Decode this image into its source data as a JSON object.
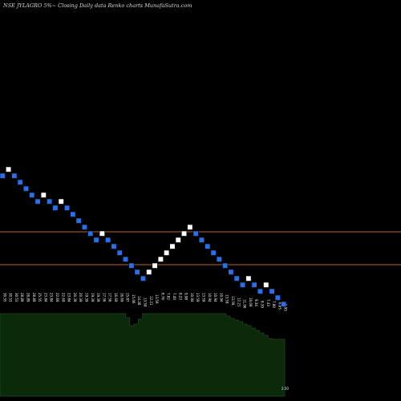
{
  "header": {
    "title": "NSE JYLAGRO 5%~  Closing Daily data  Renko  charts MunafaSutra.com"
  },
  "colors": {
    "background": "#000000",
    "up_brick": "#ffffff",
    "down_brick": "#2a6ee8",
    "brick_border": "#000000",
    "hline": "#b8632a",
    "volume_fill": "#0a2a0a",
    "volume_edge": "#2e5c2e"
  },
  "chart_data": {
    "type": "renko",
    "brick_direction": [
      "D",
      "U",
      "D",
      "D",
      "D",
      "D",
      "D",
      "U",
      "D",
      "D",
      "U",
      "D",
      "D",
      "D",
      "D",
      "D",
      "D",
      "U",
      "D",
      "D",
      "D",
      "D",
      "D",
      "D",
      "D",
      "U",
      "U",
      "U",
      "U",
      "U",
      "U",
      "U",
      "U",
      "D",
      "D",
      "D",
      "D",
      "D",
      "D",
      "D",
      "D",
      "D",
      "U",
      "D",
      "D",
      "U",
      "D",
      "D",
      "D"
    ],
    "horizontal_lines": [
      1,
      2
    ],
    "brick_labels": [
      "30.55",
      "30.53",
      "30.53",
      "28.89",
      "28.89",
      "28.89",
      "25.55",
      "23.84",
      "23.84",
      "22.69",
      "22.69",
      "23.84",
      "20.39",
      "20.39",
      "19.39",
      "19.39",
      "19.39",
      "17.56",
      "17.56",
      "16.69",
      "16.69",
      "15.87",
      "15.06",
      "14.28",
      "13.59",
      "12.21",
      "13.59",
      "8.76",
      "7.82",
      "7.40",
      "8.23",
      "9.98",
      "10.94",
      "13.59",
      "13.59",
      "10.94",
      "10.94",
      "10.94",
      "13.59",
      "13.59",
      "12.21",
      "11.06",
      "10.09",
      "9.34",
      "8.39",
      "7.43",
      "7.80",
      "6.85",
      "5.95"
    ],
    "volume": [
      12,
      12,
      12,
      12,
      12,
      12,
      12,
      12,
      12,
      12,
      12,
      12,
      12,
      12,
      12,
      12,
      12,
      12,
      12,
      12,
      12,
      12,
      12,
      12,
      12,
      12,
      12,
      12,
      12,
      12,
      17,
      27,
      25,
      19,
      12,
      12,
      12,
      12,
      12,
      12,
      12,
      12,
      12,
      12,
      12,
      12,
      12,
      12,
      12,
      12,
      12,
      12,
      12,
      12,
      15,
      18,
      20,
      22,
      25,
      27,
      30,
      33,
      36,
      39,
      43,
      44,
      44,
      44
    ],
    "last_label": "2.50"
  }
}
